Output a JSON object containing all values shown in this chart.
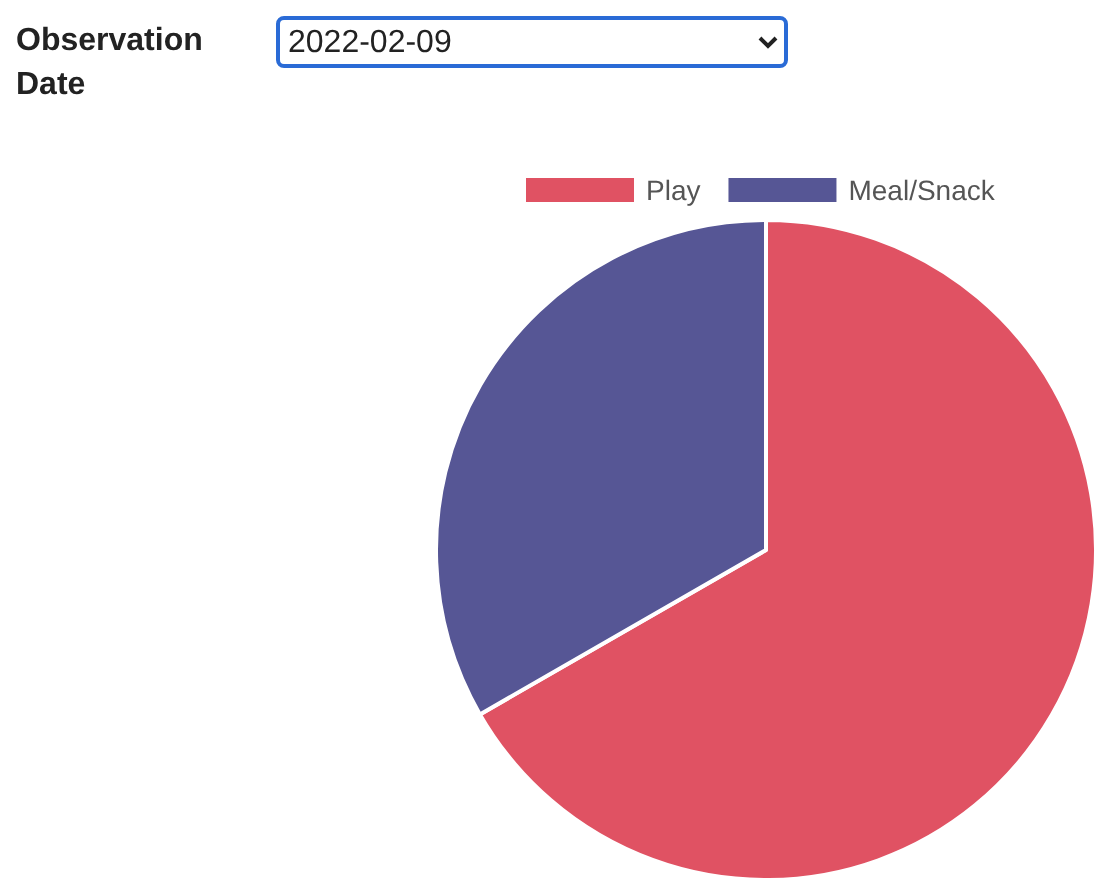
{
  "chart_data": {
    "type": "pie",
    "annotations": [
      "Observation Date",
      "2022-02-09"
    ],
    "categories": [
      "Play",
      "Meal/Snack"
    ],
    "values": [
      66.7,
      33.3
    ],
    "colors": [
      "#e05263",
      "#565695"
    ],
    "legend": "top"
  }
}
